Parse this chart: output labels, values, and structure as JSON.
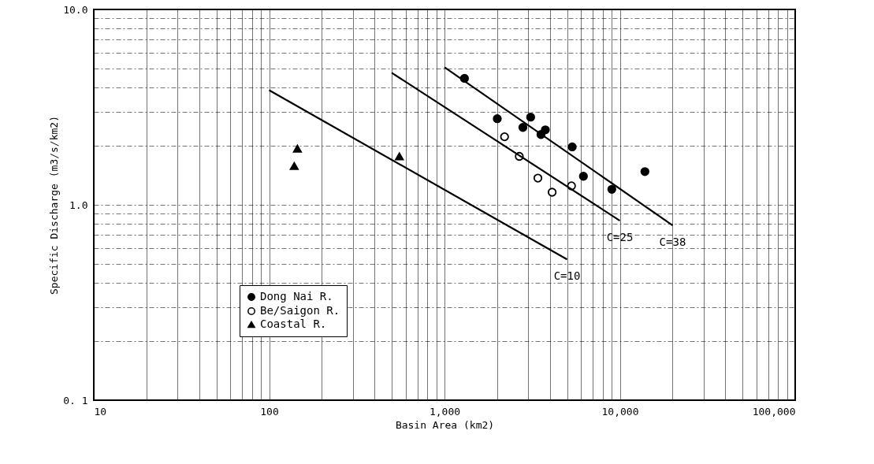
{
  "chart_data": {
    "type": "scatter",
    "xlabel": "Basin Area (km2)",
    "ylabel": "Specific Discharge (m3/s/km2)",
    "log": "xy",
    "grid": true,
    "legend": "bottom left",
    "xlim": [
      10,
      100000
    ],
    "ylim": [
      0.1,
      10
    ],
    "xticks": [
      10,
      {
        "value": 20,
        "label": null
      },
      {
        "value": 30,
        "label": null
      },
      {
        "value": 40,
        "label": null
      },
      {
        "value": 50,
        "label": null
      },
      {
        "value": 60,
        "label": null
      },
      {
        "value": 70,
        "label": null
      },
      {
        "value": 80,
        "label": null
      },
      {
        "value": 90,
        "label": null
      },
      100,
      {
        "value": 200,
        "label": null
      },
      {
        "value": 300,
        "label": null
      },
      {
        "value": 400,
        "label": null
      },
      {
        "value": 500,
        "label": null
      },
      {
        "value": 600,
        "label": null
      },
      {
        "value": 700,
        "label": null
      },
      {
        "value": 800,
        "label": null
      },
      {
        "value": 900,
        "label": null
      },
      {
        "value": 1000,
        "label": "1,000"
      },
      {
        "value": 2000,
        "label": null
      },
      {
        "value": 3000,
        "label": null
      },
      {
        "value": 4000,
        "label": null
      },
      {
        "value": 5000,
        "label": null
      },
      {
        "value": 6000,
        "label": null
      },
      {
        "value": 7000,
        "label": null
      },
      {
        "value": 8000,
        "label": null
      },
      {
        "value": 9000,
        "label": null
      },
      {
        "value": 10000,
        "label": "10,000"
      },
      {
        "value": 20000,
        "label": null
      },
      {
        "value": 30000,
        "label": null
      },
      {
        "value": 40000,
        "label": null
      },
      {
        "value": 50000,
        "label": null
      },
      {
        "value": 60000,
        "label": null
      },
      {
        "value": 70000,
        "label": null
      },
      {
        "value": 80000,
        "label": null
      },
      {
        "value": 90000,
        "label": null
      },
      {
        "value": 100000,
        "label": "100,000"
      }
    ],
    "yticks": [
      {
        "value": 0.1,
        "label": "0. 1"
      },
      {
        "value": 0.2,
        "label": null
      },
      {
        "value": 0.3,
        "label": null
      },
      {
        "value": 0.4,
        "label": null
      },
      {
        "value": 0.5,
        "label": null
      },
      {
        "value": 0.6,
        "label": null
      },
      {
        "value": 0.7,
        "label": null
      },
      {
        "value": 0.8,
        "label": null
      },
      {
        "value": 0.9,
        "label": null
      },
      {
        "value": 1,
        "label": "1.0"
      },
      {
        "value": 2,
        "label": null
      },
      {
        "value": 3,
        "label": null
      },
      {
        "value": 4,
        "label": null
      },
      {
        "value": 5,
        "label": null
      },
      {
        "value": 6,
        "label": null
      },
      {
        "value": 7,
        "label": null
      },
      {
        "value": 8,
        "label": null
      },
      {
        "value": 9,
        "label": null
      },
      {
        "value": 10,
        "label": "10.0"
      }
    ],
    "series": [
      {
        "name": "Dong Nai R.",
        "marker": "circle",
        "color": "#000000",
        "x": [
          1300,
          2000,
          3100,
          2800,
          3760,
          3550,
          5350,
          6200,
          9000,
          13900
        ],
        "values": [
          4.44,
          2.76,
          2.81,
          2.49,
          2.42,
          2.29,
          1.98,
          1.4,
          1.2,
          1.48
        ]
      },
      {
        "name": "Be/Saigon R.",
        "marker": "circle",
        "color": "#ffffff",
        "x": [
          2200,
          2670,
          3410,
          4110,
          5300
        ],
        "values": [
          2.23,
          1.77,
          1.37,
          1.16,
          1.25
        ]
      },
      {
        "name": "Coastal R.",
        "marker": "triangle",
        "color": "#000000",
        "x": [
          145,
          139,
          553
        ],
        "values": [
          1.94,
          1.58,
          1.77
        ]
      },
      {
        "type": "line",
        "color": "#000000",
        "line_style": "solid",
        "marker": "none",
        "x": [
          100,
          5000
        ],
        "values": [
          3.86,
          0.526
        ]
      },
      {
        "type": "line",
        "color": "#000000",
        "line_style": "solid",
        "marker": "none",
        "x": [
          500,
          10000
        ],
        "values": [
          4.74,
          0.83
        ]
      },
      {
        "type": "line",
        "color": "#000000",
        "line_style": "solid",
        "marker": "none",
        "x": [
          1000,
          20000
        ],
        "values": [
          5.06,
          0.785
        ]
      }
    ],
    "annotations": [
      {
        "text": "C=10",
        "x": 5000,
        "y": 0.526
      },
      {
        "text": "C=25",
        "x": 10000,
        "y": 0.83
      },
      {
        "text": "C=38",
        "x": 20000,
        "y": 0.785
      }
    ]
  }
}
